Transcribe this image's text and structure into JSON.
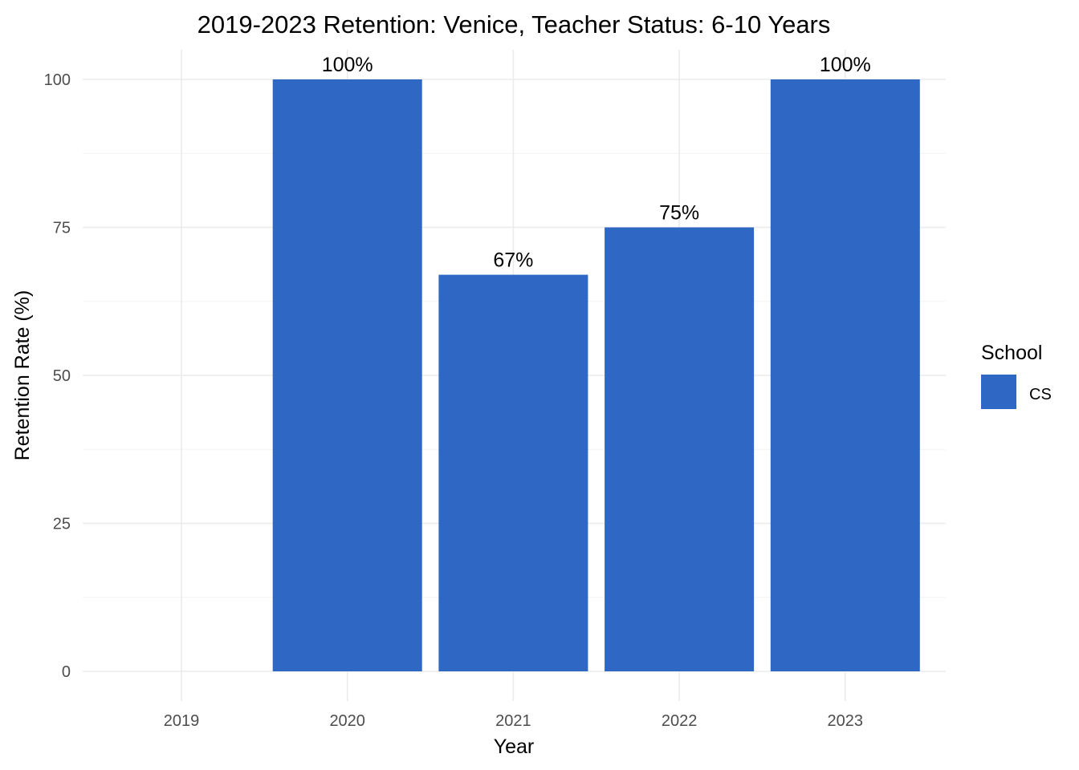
{
  "chart_data": {
    "type": "bar",
    "title": "2019-2023 Retention: Venice, Teacher Status: 6-10 Years",
    "xlabel": "Year",
    "ylabel": "Retention Rate (%)",
    "categories": [
      "2019",
      "2020",
      "2021",
      "2022",
      "2023"
    ],
    "series": [
      {
        "name": "CS",
        "values": [
          null,
          100,
          67,
          75,
          100
        ],
        "labels": [
          "",
          "100%",
          "67%",
          "75%",
          "100%"
        ],
        "color": "#2e68c4"
      }
    ],
    "yticks": [
      0,
      25,
      50,
      75,
      100
    ],
    "ylim": [
      0,
      100
    ],
    "grid": true,
    "legend": {
      "title": "School",
      "placement": "right"
    }
  }
}
